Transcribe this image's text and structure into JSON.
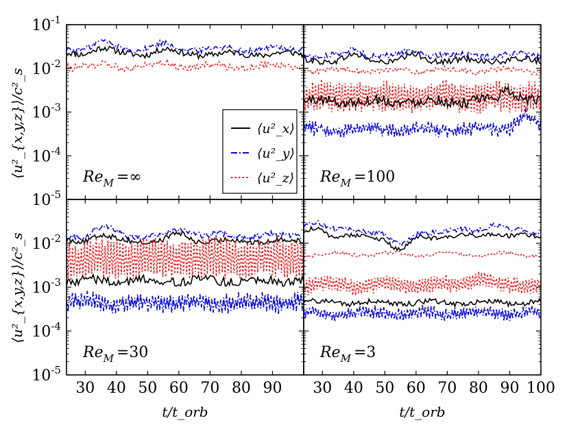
{
  "chart_data": {
    "type": "line",
    "layout": "2x2 grid, shared axes",
    "xlabel": "t/t_orb",
    "ylabel": "⟨u²_{x,y,z}⟩/c²_s",
    "yscale": "log",
    "ylim": [
      1e-05,
      0.1
    ],
    "xlim": [
      24,
      100
    ],
    "xticks": [
      30,
      40,
      50,
      60,
      70,
      80,
      90,
      100
    ],
    "xtick_labels": [
      "30",
      "40",
      "50",
      "60",
      "70",
      "80",
      "90",
      "100"
    ],
    "ytick_exponents": [
      -5,
      -4,
      -3,
      -2,
      -1
    ],
    "ytick_base": "10",
    "legend": {
      "placement": "inside top-right panel",
      "entries": [
        {
          "series": "ux",
          "label": "⟨u²_x⟩",
          "color": "#000000",
          "style": "solid"
        },
        {
          "series": "uy",
          "label": "⟨u²_y⟩",
          "color": "#0000dd",
          "style": "dashdot"
        },
        {
          "series": "uz",
          "label": "⟨u²_z⟩",
          "color": "#ee1111",
          "style": "dotted"
        }
      ]
    },
    "panels": [
      {
        "id": "top-left",
        "label_prefix": "Re",
        "label_sub": "M",
        "label_value": "=∞",
        "series": [
          {
            "name": "ux",
            "mean_log10": -1.67,
            "jitter": 0.07,
            "osc": 0.0,
            "bumps": [
              [
                35,
                0.15
              ],
              [
                55,
                0.1
              ]
            ]
          },
          {
            "name": "uy",
            "mean_log10": -1.55,
            "jitter": 0.07,
            "osc": 0.0,
            "bumps": [
              [
                35,
                0.15
              ],
              [
                55,
                0.1
              ]
            ]
          },
          {
            "name": "uz",
            "mean_log10": -1.95,
            "jitter": 0.08,
            "osc": 0.0,
            "bumps": [
              [
                55,
                0.08
              ]
            ]
          }
        ]
      },
      {
        "id": "top-right",
        "label_prefix": "Re",
        "label_sub": "M",
        "label_value": "=100",
        "series": [
          {
            "name": "ux",
            "mean_log10": -1.82,
            "jitter": 0.07,
            "osc": 0.0,
            "bumps": [
              [
                40,
                0.1
              ],
              [
                60,
                0.1
              ]
            ]
          },
          {
            "name": "uy",
            "mean_log10": -1.7,
            "jitter": 0.07,
            "osc": 0.0,
            "bumps": [
              [
                40,
                0.1
              ],
              [
                60,
                0.1
              ]
            ]
          },
          {
            "name": "uz",
            "mean_log10": -2.05,
            "jitter": 0.06,
            "osc": 0.0,
            "bumps": []
          },
          {
            "name": "uz_fast",
            "style_of": "uz",
            "mean_log10": -2.65,
            "jitter": 0.05,
            "osc": 0.35,
            "bumps": []
          },
          {
            "name": "ux_low",
            "style_of": "ux",
            "mean_log10": -2.75,
            "jitter": 0.12,
            "osc": 0.0,
            "bumps": [
              [
                90,
                0.25
              ]
            ]
          },
          {
            "name": "uy_low",
            "style_of": "uy",
            "mean_log10": -3.4,
            "jitter": 0.08,
            "osc": 0.12,
            "bumps": [
              [
                95,
                0.3
              ]
            ]
          }
        ]
      },
      {
        "id": "bottom-left",
        "label_prefix": "Re",
        "label_sub": "M",
        "label_value": "=30",
        "series": [
          {
            "name": "ux",
            "mean_log10": -1.95,
            "jitter": 0.06,
            "osc": 0.0,
            "bumps": [
              [
                35,
                0.15
              ],
              [
                60,
                0.15
              ]
            ]
          },
          {
            "name": "uy",
            "mean_log10": -1.82,
            "jitter": 0.07,
            "osc": 0.0,
            "bumps": [
              [
                36,
                0.2
              ],
              [
                62,
                0.15
              ]
            ]
          },
          {
            "name": "uz",
            "mean_log10": -2.35,
            "jitter": 0.05,
            "osc": 0.45,
            "bumps": []
          },
          {
            "name": "ux_low",
            "style_of": "ux",
            "mean_log10": -2.85,
            "jitter": 0.1,
            "osc": 0.0,
            "bumps": []
          },
          {
            "name": "uy_low",
            "style_of": "uy",
            "mean_log10": -3.35,
            "jitter": 0.07,
            "osc": 0.18,
            "bumps": []
          }
        ]
      },
      {
        "id": "bottom-right",
        "label_prefix": "Re",
        "label_sub": "M",
        "label_value": "=3",
        "series": [
          {
            "name": "ux",
            "mean_log10": -1.85,
            "jitter": 0.05,
            "osc": 0.0,
            "bumps": [
              [
                28,
                0.2
              ],
              [
                55,
                -0.3
              ],
              [
                85,
                0.1
              ]
            ]
          },
          {
            "name": "uy",
            "mean_log10": -1.72,
            "jitter": 0.06,
            "osc": 0.0,
            "bumps": [
              [
                28,
                0.25
              ],
              [
                55,
                -0.35
              ],
              [
                85,
                0.15
              ]
            ]
          },
          {
            "name": "uz",
            "mean_log10": -2.25,
            "jitter": 0.04,
            "osc": 0.0,
            "bumps": []
          },
          {
            "name": "uz_fast",
            "style_of": "uz",
            "mean_log10": -2.95,
            "jitter": 0.04,
            "osc": 0.18,
            "bumps": [
              [
                80,
                0.15
              ]
            ]
          },
          {
            "name": "ux_low",
            "style_of": "ux",
            "mean_log10": -3.35,
            "jitter": 0.06,
            "osc": 0.0,
            "bumps": []
          },
          {
            "name": "uy_low",
            "style_of": "uy",
            "mean_log10": -3.6,
            "jitter": 0.05,
            "osc": 0.12,
            "bumps": []
          }
        ]
      }
    ]
  },
  "colors": {
    "ux": "#000000",
    "uy": "#0000dd",
    "uz": "#ee1111"
  }
}
